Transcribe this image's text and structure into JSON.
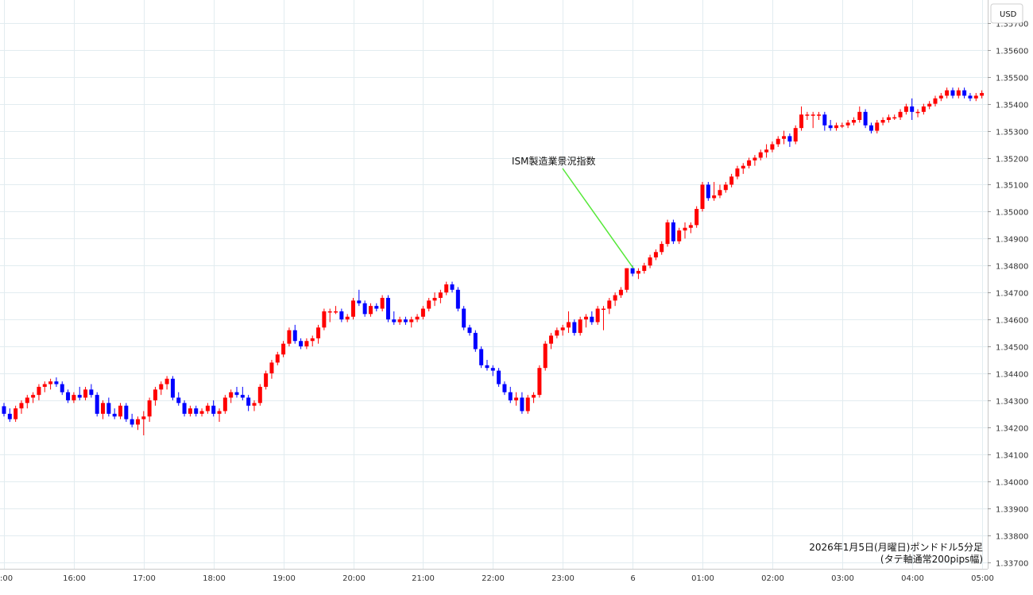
{
  "currency_label": "USD",
  "caption_line1": "2026年1月5日(月曜日)ポンドドル5分足",
  "caption_line2": "(タテ軸通常200pips幅)",
  "annotation_text": "ISM製造業景況指数",
  "colors": {
    "up": "#ff0000",
    "down": "#0000ff",
    "grid": "#e2ecf0",
    "annotation_line": "#55e838"
  },
  "chart_data": {
    "type": "candlestick",
    "title": "",
    "xlabel": "",
    "ylabel": "",
    "y_axis_position": "right",
    "grid": true,
    "ylim": [
      1.33675,
      1.35785
    ],
    "y_ticks": [
      "1.35700",
      "1.35600",
      "1.35500",
      "1.35400",
      "1.35300",
      "1.35200",
      "1.35100",
      "1.35000",
      "1.34900",
      "1.34800",
      "1.34700",
      "1.34600",
      "1.34500",
      "1.34400",
      "1.34300",
      "1.34200",
      "1.34100",
      "1.34000",
      "1.33900",
      "1.33800",
      "1.33700"
    ],
    "x_tick_labels": [
      ":00",
      "16:00",
      "17:00",
      "18:00",
      "19:00",
      "20:00",
      "21:00",
      "22:00",
      "23:00",
      "6",
      "01:00",
      "02:00",
      "03:00",
      "04:00",
      "05:00"
    ],
    "x_start": "15:00",
    "x_end": "05:00",
    "interval_minutes": 5,
    "candles_ohlc": [
      [
        1.34278,
        1.3429,
        1.3424,
        1.3425
      ],
      [
        1.3425,
        1.3427,
        1.3422,
        1.3423
      ],
      [
        1.3423,
        1.3428,
        1.3422,
        1.3427
      ],
      [
        1.3427,
        1.343,
        1.3425,
        1.3429
      ],
      [
        1.3429,
        1.3432,
        1.3427,
        1.3431
      ],
      [
        1.3431,
        1.3433,
        1.3429,
        1.3432
      ],
      [
        1.3432,
        1.3436,
        1.343,
        1.3435
      ],
      [
        1.3435,
        1.3437,
        1.3433,
        1.3436
      ],
      [
        1.3436,
        1.3438,
        1.3434,
        1.3437
      ],
      [
        1.3437,
        1.34385,
        1.3435,
        1.3436
      ],
      [
        1.3436,
        1.3437,
        1.3432,
        1.3433
      ],
      [
        1.3433,
        1.3434,
        1.3429,
        1.343
      ],
      [
        1.343,
        1.3433,
        1.3429,
        1.3432
      ],
      [
        1.3432,
        1.3435,
        1.343,
        1.3431
      ],
      [
        1.3431,
        1.3435,
        1.343,
        1.3434
      ],
      [
        1.3434,
        1.3436,
        1.3431,
        1.3432
      ],
      [
        1.3432,
        1.3433,
        1.3424,
        1.3425
      ],
      [
        1.3425,
        1.343,
        1.3423,
        1.3429
      ],
      [
        1.3429,
        1.3431,
        1.3424,
        1.3425
      ],
      [
        1.3425,
        1.3427,
        1.3423,
        1.3424
      ],
      [
        1.3424,
        1.3429,
        1.3423,
        1.3428
      ],
      [
        1.3428,
        1.3429,
        1.3422,
        1.3423
      ],
      [
        1.3423,
        1.3425,
        1.342,
        1.3421
      ],
      [
        1.3421,
        1.3424,
        1.3419,
        1.3423
      ],
      [
        1.3423,
        1.3426,
        1.3417,
        1.3424
      ],
      [
        1.3424,
        1.3431,
        1.3422,
        1.343
      ],
      [
        1.343,
        1.3435,
        1.3428,
        1.3434
      ],
      [
        1.3434,
        1.3437,
        1.3432,
        1.3436
      ],
      [
        1.3436,
        1.3439,
        1.3434,
        1.3438
      ],
      [
        1.3438,
        1.3439,
        1.343,
        1.3431
      ],
      [
        1.3431,
        1.3433,
        1.3428,
        1.3429
      ],
      [
        1.3429,
        1.343,
        1.3424,
        1.3425
      ],
      [
        1.3425,
        1.3428,
        1.3424,
        1.3427
      ],
      [
        1.3427,
        1.3428,
        1.3424,
        1.3425
      ],
      [
        1.3425,
        1.3427,
        1.3424,
        1.3426
      ],
      [
        1.3426,
        1.3429,
        1.3425,
        1.3428
      ],
      [
        1.3428,
        1.343,
        1.3424,
        1.3425
      ],
      [
        1.3425,
        1.3427,
        1.3422,
        1.3426
      ],
      [
        1.3426,
        1.3432,
        1.3425,
        1.3431
      ],
      [
        1.3431,
        1.3434,
        1.3429,
        1.3433
      ],
      [
        1.3433,
        1.3435,
        1.3431,
        1.3432
      ],
      [
        1.3432,
        1.3435,
        1.343,
        1.3431
      ],
      [
        1.3431,
        1.3432,
        1.3426,
        1.3428
      ],
      [
        1.3428,
        1.343,
        1.3426,
        1.3429
      ],
      [
        1.3429,
        1.3436,
        1.3428,
        1.3435
      ],
      [
        1.3435,
        1.3441,
        1.3434,
        1.344
      ],
      [
        1.344,
        1.3445,
        1.3438,
        1.3444
      ],
      [
        1.3444,
        1.3448,
        1.3443,
        1.3447
      ],
      [
        1.3447,
        1.3452,
        1.3446,
        1.3451
      ],
      [
        1.3451,
        1.3457,
        1.345,
        1.3456
      ],
      [
        1.3456,
        1.3458,
        1.3451,
        1.3452
      ],
      [
        1.3452,
        1.3453,
        1.3449,
        1.345
      ],
      [
        1.345,
        1.3453,
        1.3449,
        1.3452
      ],
      [
        1.3452,
        1.3454,
        1.345,
        1.3453
      ],
      [
        1.3453,
        1.3458,
        1.3451,
        1.3457
      ],
      [
        1.3457,
        1.3464,
        1.3456,
        1.3463
      ],
      [
        1.3463,
        1.3464,
        1.3459,
        1.3463
      ],
      [
        1.3463,
        1.3465,
        1.3462,
        1.3463
      ],
      [
        1.3463,
        1.3464,
        1.3459,
        1.346
      ],
      [
        1.346,
        1.3462,
        1.3459,
        1.3461
      ],
      [
        1.3461,
        1.3468,
        1.346,
        1.3467
      ],
      [
        1.3467,
        1.3471,
        1.3465,
        1.3466
      ],
      [
        1.3466,
        1.3467,
        1.3461,
        1.3462
      ],
      [
        1.3462,
        1.3466,
        1.3461,
        1.3465
      ],
      [
        1.3465,
        1.3466,
        1.3463,
        1.3464
      ],
      [
        1.3464,
        1.3469,
        1.3463,
        1.3468
      ],
      [
        1.3468,
        1.3469,
        1.3459,
        1.346
      ],
      [
        1.346,
        1.3463,
        1.3458,
        1.3459
      ],
      [
        1.3459,
        1.3461,
        1.3458,
        1.346
      ],
      [
        1.346,
        1.3461,
        1.3458,
        1.3459
      ],
      [
        1.3459,
        1.3461,
        1.3457,
        1.346
      ],
      [
        1.346,
        1.3462,
        1.3459,
        1.3461
      ],
      [
        1.3461,
        1.3465,
        1.346,
        1.3464
      ],
      [
        1.3464,
        1.3468,
        1.3463,
        1.3467
      ],
      [
        1.3467,
        1.347,
        1.3465,
        1.3468
      ],
      [
        1.3468,
        1.3471,
        1.3466,
        1.347
      ],
      [
        1.347,
        1.3474,
        1.3469,
        1.3473
      ],
      [
        1.3473,
        1.3474,
        1.347,
        1.3471
      ],
      [
        1.3471,
        1.3472,
        1.3463,
        1.3464
      ],
      [
        1.3464,
        1.3465,
        1.3456,
        1.3457
      ],
      [
        1.3457,
        1.3458,
        1.3454,
        1.3455
      ],
      [
        1.3455,
        1.3456,
        1.3448,
        1.3449
      ],
      [
        1.3449,
        1.345,
        1.3442,
        1.3443
      ],
      [
        1.3443,
        1.3445,
        1.3441,
        1.3442
      ],
      [
        1.3442,
        1.3443,
        1.3439,
        1.3441
      ],
      [
        1.3441,
        1.3442,
        1.3435,
        1.3436
      ],
      [
        1.3436,
        1.3437,
        1.3432,
        1.3433
      ],
      [
        1.3433,
        1.3435,
        1.3429,
        1.343
      ],
      [
        1.343,
        1.3433,
        1.3428,
        1.3431
      ],
      [
        1.3431,
        1.3433,
        1.3425,
        1.3426
      ],
      [
        1.3426,
        1.3432,
        1.3425,
        1.3431
      ],
      [
        1.3431,
        1.3433,
        1.3429,
        1.3432
      ],
      [
        1.3432,
        1.3443,
        1.3431,
        1.3442
      ],
      [
        1.3442,
        1.3452,
        1.3441,
        1.3451
      ],
      [
        1.3451,
        1.3455,
        1.3449,
        1.3454
      ],
      [
        1.3454,
        1.3457,
        1.3453,
        1.3456
      ],
      [
        1.3456,
        1.3458,
        1.3454,
        1.3457
      ],
      [
        1.3457,
        1.3463,
        1.3455,
        1.3459
      ],
      [
        1.3459,
        1.346,
        1.3454,
        1.3455
      ],
      [
        1.3455,
        1.3461,
        1.3454,
        1.346
      ],
      [
        1.346,
        1.3462,
        1.3457,
        1.3461
      ],
      [
        1.3461,
        1.3463,
        1.3458,
        1.3459
      ],
      [
        1.3459,
        1.3465,
        1.3458,
        1.3464
      ],
      [
        1.3464,
        1.3465,
        1.3456,
        1.3464
      ],
      [
        1.3464,
        1.3468,
        1.3462,
        1.3467
      ],
      [
        1.3467,
        1.347,
        1.3465,
        1.3469
      ],
      [
        1.3469,
        1.3472,
        1.3468,
        1.3471
      ],
      [
        1.3471,
        1.3479,
        1.347,
        1.3479
      ],
      [
        1.3479,
        1.348,
        1.3476,
        1.3477
      ],
      [
        1.3477,
        1.3479,
        1.3475,
        1.3478
      ],
      [
        1.3478,
        1.3481,
        1.3477,
        1.348
      ],
      [
        1.348,
        1.3484,
        1.3479,
        1.3483
      ],
      [
        1.3483,
        1.3486,
        1.3482,
        1.3485
      ],
      [
        1.3485,
        1.3489,
        1.3484,
        1.3488
      ],
      [
        1.3488,
        1.3497,
        1.3487,
        1.3496
      ],
      [
        1.3496,
        1.3497,
        1.3488,
        1.3489
      ],
      [
        1.3489,
        1.3494,
        1.3488,
        1.3493
      ],
      [
        1.3493,
        1.3496,
        1.349,
        1.3494
      ],
      [
        1.3494,
        1.3496,
        1.3492,
        1.3495
      ],
      [
        1.3495,
        1.3502,
        1.3494,
        1.3501
      ],
      [
        1.3501,
        1.3511,
        1.35,
        1.351
      ],
      [
        1.351,
        1.3511,
        1.3504,
        1.3505
      ],
      [
        1.3505,
        1.3511,
        1.3504,
        1.3506
      ],
      [
        1.3506,
        1.351,
        1.3505,
        1.3508
      ],
      [
        1.3508,
        1.3511,
        1.3507,
        1.351
      ],
      [
        1.351,
        1.3514,
        1.3509,
        1.3513
      ],
      [
        1.3513,
        1.3517,
        1.3512,
        1.3516
      ],
      [
        1.3516,
        1.3518,
        1.3514,
        1.3517
      ],
      [
        1.3517,
        1.352,
        1.3516,
        1.3519
      ],
      [
        1.3519,
        1.3521,
        1.3517,
        1.352
      ],
      [
        1.352,
        1.3523,
        1.3519,
        1.3522
      ],
      [
        1.3522,
        1.3525,
        1.352,
        1.3523
      ],
      [
        1.3523,
        1.3526,
        1.3522,
        1.3525
      ],
      [
        1.3525,
        1.3528,
        1.3524,
        1.3527
      ],
      [
        1.3527,
        1.353,
        1.3525,
        1.3528
      ],
      [
        1.3528,
        1.3529,
        1.3524,
        1.3526
      ],
      [
        1.3526,
        1.3532,
        1.3525,
        1.3531
      ],
      [
        1.3531,
        1.3539,
        1.353,
        1.3536
      ],
      [
        1.3536,
        1.3537,
        1.3534,
        1.3536
      ],
      [
        1.3536,
        1.3537,
        1.3531,
        1.3536
      ],
      [
        1.3536,
        1.3537,
        1.3534,
        1.3536
      ],
      [
        1.3536,
        1.3537,
        1.353,
        1.3532
      ],
      [
        1.3532,
        1.3534,
        1.353,
        1.3531
      ],
      [
        1.3531,
        1.3533,
        1.353,
        1.3532
      ],
      [
        1.3532,
        1.3533,
        1.3531,
        1.3532
      ],
      [
        1.3532,
        1.3534,
        1.3531,
        1.3533
      ],
      [
        1.3533,
        1.3535,
        1.3532,
        1.3534
      ],
      [
        1.3534,
        1.3539,
        1.3533,
        1.3537
      ],
      [
        1.3537,
        1.3538,
        1.3531,
        1.3532
      ],
      [
        1.3532,
        1.3533,
        1.3529,
        1.353
      ],
      [
        1.353,
        1.3534,
        1.3529,
        1.3533
      ],
      [
        1.3533,
        1.3535,
        1.3532,
        1.3534
      ],
      [
        1.3534,
        1.3536,
        1.3533,
        1.3535
      ],
      [
        1.3535,
        1.3536,
        1.3534,
        1.3535
      ],
      [
        1.3535,
        1.3538,
        1.3534,
        1.3537
      ],
      [
        1.3537,
        1.354,
        1.3536,
        1.3539
      ],
      [
        1.3539,
        1.3542,
        1.3534,
        1.3537
      ],
      [
        1.3537,
        1.3538,
        1.3535,
        1.3537
      ],
      [
        1.3537,
        1.354,
        1.3536,
        1.3539
      ],
      [
        1.3539,
        1.3541,
        1.3538,
        1.354
      ],
      [
        1.354,
        1.3543,
        1.3539,
        1.3542
      ],
      [
        1.3542,
        1.3544,
        1.3541,
        1.3543
      ],
      [
        1.3543,
        1.3546,
        1.3542,
        1.3545
      ],
      [
        1.3545,
        1.3546,
        1.3542,
        1.3543
      ],
      [
        1.3543,
        1.3546,
        1.3542,
        1.3545
      ],
      [
        1.3545,
        1.3546,
        1.3542,
        1.3543
      ],
      [
        1.3543,
        1.3544,
        1.3541,
        1.3542
      ],
      [
        1.3542,
        1.3544,
        1.3541,
        1.3543
      ],
      [
        1.3543,
        1.3545,
        1.3542,
        1.3544
      ]
    ],
    "annotations": [
      {
        "text": "ISM製造業景況指数",
        "x": "00:00",
        "y": 1.3479
      }
    ]
  }
}
